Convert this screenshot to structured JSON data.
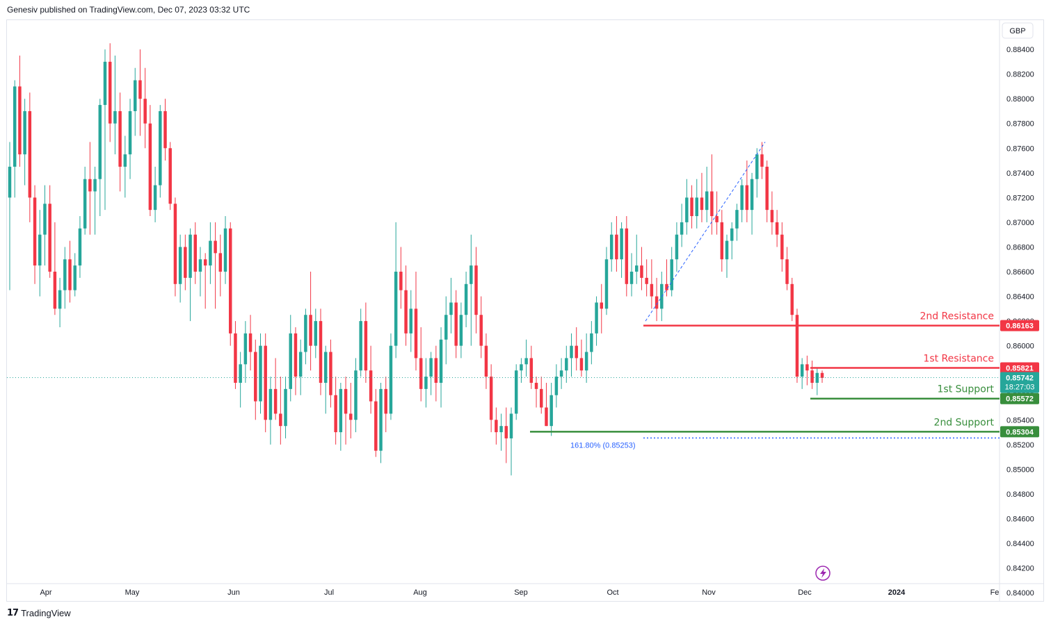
{
  "header": {
    "text": "Genesiv published on TradingView.com, Dec 07, 2023 03:32 UTC"
  },
  "footer": {
    "brand": "TradingView"
  },
  "colors": {
    "up": "#26a69a",
    "down": "#f23645",
    "resistance": "#f23645",
    "support": "#388e3c",
    "fib": "#2962ff"
  },
  "chart_data": {
    "type": "candlestick",
    "currency": "GBP",
    "y_ticks": [
      "0.88400",
      "0.88200",
      "0.88000",
      "0.87800",
      "0.87600",
      "0.87400",
      "0.87200",
      "0.87000",
      "0.86800",
      "0.86600",
      "0.86400",
      "0.86200",
      "0.86000",
      "0.85800",
      "0.85600",
      "0.85400",
      "0.85200",
      "0.85000",
      "0.84800",
      "0.84600",
      "0.84400",
      "0.84200",
      "0.84000"
    ],
    "ylim": [
      0.8395,
      0.8862
    ],
    "x_labels": [
      "Apr",
      "May",
      "Jun",
      "Jul",
      "Aug",
      "Sep",
      "Oct",
      "Nov",
      "Dec",
      "2024",
      "Fe"
    ],
    "last_price": {
      "value": "0.85742",
      "countdown": "18:27:03"
    },
    "levels": [
      {
        "label": "2nd Resistance",
        "value": "0.86163",
        "kind": "resistance"
      },
      {
        "label": "1st Resistance",
        "value": "0.85821",
        "kind": "resistance"
      },
      {
        "label": "1st Support",
        "value": "0.85572",
        "kind": "support"
      },
      {
        "label": "2nd Support",
        "value": "0.85304",
        "kind": "support"
      }
    ],
    "fib": {
      "label": "161.80% (0.85253)",
      "value": 0.85253
    },
    "candles": [
      [
        0.872,
        0.8765,
        0.8645,
        0.8745
      ],
      [
        0.8745,
        0.8815,
        0.872,
        0.881
      ],
      [
        0.881,
        0.8835,
        0.8745,
        0.8755
      ],
      [
        0.8755,
        0.88,
        0.873,
        0.879
      ],
      [
        0.879,
        0.8805,
        0.87,
        0.872
      ],
      [
        0.872,
        0.873,
        0.865,
        0.8665
      ],
      [
        0.8665,
        0.871,
        0.864,
        0.869
      ],
      [
        0.869,
        0.873,
        0.8665,
        0.8715
      ],
      [
        0.8715,
        0.873,
        0.8655,
        0.866
      ],
      [
        0.866,
        0.87,
        0.8625,
        0.863
      ],
      [
        0.863,
        0.8655,
        0.8615,
        0.8645
      ],
      [
        0.8645,
        0.868,
        0.863,
        0.867
      ],
      [
        0.867,
        0.8685,
        0.8635,
        0.8645
      ],
      [
        0.8645,
        0.8675,
        0.864,
        0.8665
      ],
      [
        0.8665,
        0.8705,
        0.8655,
        0.8695
      ],
      [
        0.8695,
        0.8745,
        0.869,
        0.8735
      ],
      [
        0.8735,
        0.8765,
        0.869,
        0.8725
      ],
      [
        0.8725,
        0.8745,
        0.869,
        0.8735
      ],
      [
        0.8735,
        0.88,
        0.8705,
        0.8795
      ],
      [
        0.8795,
        0.884,
        0.871,
        0.883
      ],
      [
        0.883,
        0.8845,
        0.8765,
        0.878
      ],
      [
        0.878,
        0.8835,
        0.8755,
        0.879
      ],
      [
        0.879,
        0.8805,
        0.8725,
        0.8745
      ],
      [
        0.8745,
        0.877,
        0.872,
        0.8755
      ],
      [
        0.8755,
        0.88,
        0.8735,
        0.879
      ],
      [
        0.879,
        0.8825,
        0.877,
        0.8815
      ],
      [
        0.8815,
        0.884,
        0.877,
        0.88
      ],
      [
        0.88,
        0.8825,
        0.876,
        0.878
      ],
      [
        0.878,
        0.8795,
        0.8705,
        0.871
      ],
      [
        0.871,
        0.8745,
        0.87,
        0.873
      ],
      [
        0.873,
        0.8795,
        0.872,
        0.879
      ],
      [
        0.879,
        0.88,
        0.875,
        0.876
      ],
      [
        0.876,
        0.8765,
        0.871,
        0.8715
      ],
      [
        0.8715,
        0.872,
        0.864,
        0.865
      ],
      [
        0.865,
        0.869,
        0.8635,
        0.868
      ],
      [
        0.868,
        0.869,
        0.8645,
        0.8655
      ],
      [
        0.8655,
        0.8695,
        0.862,
        0.869
      ],
      [
        0.869,
        0.87,
        0.865,
        0.866
      ],
      [
        0.866,
        0.868,
        0.864,
        0.867
      ],
      [
        0.867,
        0.8675,
        0.863,
        0.8665
      ],
      [
        0.8665,
        0.87,
        0.865,
        0.8685
      ],
      [
        0.8685,
        0.87,
        0.863,
        0.8675
      ],
      [
        0.8675,
        0.869,
        0.864,
        0.866
      ],
      [
        0.866,
        0.8705,
        0.865,
        0.8695
      ],
      [
        0.8695,
        0.87,
        0.86,
        0.861
      ],
      [
        0.861,
        0.862,
        0.8565,
        0.857
      ],
      [
        0.857,
        0.8595,
        0.855,
        0.8585
      ],
      [
        0.8585,
        0.862,
        0.857,
        0.861
      ],
      [
        0.861,
        0.8625,
        0.858,
        0.8595
      ],
      [
        0.8595,
        0.8605,
        0.854,
        0.8555
      ],
      [
        0.8555,
        0.861,
        0.8545,
        0.86
      ],
      [
        0.86,
        0.861,
        0.853,
        0.854
      ],
      [
        0.854,
        0.8575,
        0.852,
        0.8565
      ],
      [
        0.8565,
        0.859,
        0.854,
        0.8545
      ],
      [
        0.8545,
        0.8575,
        0.852,
        0.8535
      ],
      [
        0.8535,
        0.8575,
        0.8525,
        0.8565
      ],
      [
        0.8565,
        0.8625,
        0.8555,
        0.861
      ],
      [
        0.861,
        0.8615,
        0.856,
        0.8575
      ],
      [
        0.8575,
        0.8605,
        0.856,
        0.8595
      ],
      [
        0.8595,
        0.863,
        0.8585,
        0.8625
      ],
      [
        0.8625,
        0.866,
        0.858,
        0.86
      ],
      [
        0.86,
        0.863,
        0.859,
        0.862
      ],
      [
        0.862,
        0.863,
        0.856,
        0.857
      ],
      [
        0.857,
        0.86,
        0.8545,
        0.8595
      ],
      [
        0.8595,
        0.8605,
        0.855,
        0.856
      ],
      [
        0.856,
        0.8575,
        0.852,
        0.853
      ],
      [
        0.853,
        0.857,
        0.8515,
        0.8565
      ],
      [
        0.8565,
        0.8575,
        0.852,
        0.8545
      ],
      [
        0.8545,
        0.857,
        0.8525,
        0.854
      ],
      [
        0.854,
        0.859,
        0.853,
        0.858
      ],
      [
        0.858,
        0.863,
        0.8575,
        0.862
      ],
      [
        0.862,
        0.8635,
        0.857,
        0.858
      ],
      [
        0.858,
        0.86,
        0.8545,
        0.8555
      ],
      [
        0.8555,
        0.8565,
        0.851,
        0.8515
      ],
      [
        0.8515,
        0.857,
        0.8505,
        0.8565
      ],
      [
        0.8565,
        0.8575,
        0.853,
        0.8545
      ],
      [
        0.8545,
        0.861,
        0.854,
        0.86
      ],
      [
        0.86,
        0.87,
        0.859,
        0.866
      ],
      [
        0.866,
        0.868,
        0.863,
        0.8645
      ],
      [
        0.8645,
        0.8665,
        0.86,
        0.861
      ],
      [
        0.861,
        0.8645,
        0.8595,
        0.863
      ],
      [
        0.863,
        0.866,
        0.858,
        0.859
      ],
      [
        0.859,
        0.8615,
        0.8555,
        0.8565
      ],
      [
        0.8565,
        0.859,
        0.855,
        0.8575
      ],
      [
        0.8575,
        0.8595,
        0.856,
        0.859
      ],
      [
        0.859,
        0.86,
        0.8555,
        0.857
      ],
      [
        0.857,
        0.8615,
        0.855,
        0.8605
      ],
      [
        0.8605,
        0.864,
        0.8585,
        0.8625
      ],
      [
        0.8625,
        0.8655,
        0.861,
        0.8635
      ],
      [
        0.8635,
        0.8645,
        0.859,
        0.86
      ],
      [
        0.86,
        0.8635,
        0.859,
        0.8625
      ],
      [
        0.8625,
        0.866,
        0.8615,
        0.865
      ],
      [
        0.865,
        0.869,
        0.86,
        0.8665
      ],
      [
        0.8665,
        0.868,
        0.861,
        0.8625
      ],
      [
        0.8625,
        0.864,
        0.859,
        0.86
      ],
      [
        0.86,
        0.861,
        0.8565,
        0.8575
      ],
      [
        0.8575,
        0.8585,
        0.853,
        0.854
      ],
      [
        0.854,
        0.855,
        0.852,
        0.853
      ],
      [
        0.853,
        0.8545,
        0.8515,
        0.8535
      ],
      [
        0.8535,
        0.855,
        0.8505,
        0.8525
      ],
      [
        0.8525,
        0.855,
        0.8495,
        0.8545
      ],
      [
        0.8545,
        0.8585,
        0.854,
        0.858
      ],
      [
        0.858,
        0.859,
        0.857,
        0.8585
      ],
      [
        0.8585,
        0.8605,
        0.8575,
        0.859
      ],
      [
        0.859,
        0.86,
        0.8565,
        0.857
      ],
      [
        0.857,
        0.8575,
        0.855,
        0.8565
      ],
      [
        0.8565,
        0.8575,
        0.8545,
        0.855
      ],
      [
        0.855,
        0.857,
        0.8535,
        0.8535
      ],
      [
        0.8535,
        0.857,
        0.8527,
        0.856
      ],
      [
        0.856,
        0.8585,
        0.855,
        0.8575
      ],
      [
        0.8575,
        0.859,
        0.8565,
        0.858
      ],
      [
        0.858,
        0.86,
        0.857,
        0.859
      ],
      [
        0.859,
        0.861,
        0.8575,
        0.86
      ],
      [
        0.86,
        0.8615,
        0.858,
        0.859
      ],
      [
        0.859,
        0.8605,
        0.8575,
        0.858
      ],
      [
        0.858,
        0.861,
        0.857,
        0.8595
      ],
      [
        0.8595,
        0.862,
        0.8585,
        0.861
      ],
      [
        0.861,
        0.864,
        0.86,
        0.8635
      ],
      [
        0.8635,
        0.865,
        0.861,
        0.863
      ],
      [
        0.863,
        0.868,
        0.8625,
        0.867
      ],
      [
        0.867,
        0.87,
        0.866,
        0.869
      ],
      [
        0.869,
        0.8705,
        0.866,
        0.867
      ],
      [
        0.867,
        0.87,
        0.8655,
        0.8695
      ],
      [
        0.8695,
        0.8705,
        0.864,
        0.865
      ],
      [
        0.865,
        0.8675,
        0.864,
        0.866
      ],
      [
        0.866,
        0.869,
        0.865,
        0.8665
      ],
      [
        0.8665,
        0.868,
        0.8645,
        0.8655
      ],
      [
        0.8655,
        0.867,
        0.864,
        0.865
      ],
      [
        0.865,
        0.867,
        0.863,
        0.864
      ],
      [
        0.864,
        0.8655,
        0.862,
        0.863
      ],
      [
        0.863,
        0.866,
        0.862,
        0.865
      ],
      [
        0.865,
        0.867,
        0.864,
        0.8645
      ],
      [
        0.8645,
        0.868,
        0.864,
        0.867
      ],
      [
        0.867,
        0.87,
        0.866,
        0.869
      ],
      [
        0.869,
        0.8715,
        0.868,
        0.87
      ],
      [
        0.87,
        0.8735,
        0.869,
        0.872
      ],
      [
        0.872,
        0.873,
        0.8695,
        0.8705
      ],
      [
        0.8705,
        0.8735,
        0.8695,
        0.872
      ],
      [
        0.872,
        0.874,
        0.87,
        0.871
      ],
      [
        0.871,
        0.8745,
        0.87,
        0.8725
      ],
      [
        0.8725,
        0.8755,
        0.869,
        0.8705
      ],
      [
        0.8705,
        0.8725,
        0.869,
        0.87
      ],
      [
        0.87,
        0.871,
        0.866,
        0.867
      ],
      [
        0.867,
        0.869,
        0.8655,
        0.8685
      ],
      [
        0.8685,
        0.87,
        0.867,
        0.8695
      ],
      [
        0.8695,
        0.8715,
        0.8685,
        0.871
      ],
      [
        0.871,
        0.8735,
        0.87,
        0.873
      ],
      [
        0.873,
        0.875,
        0.87,
        0.871
      ],
      [
        0.871,
        0.874,
        0.869,
        0.8735
      ],
      [
        0.8735,
        0.876,
        0.872,
        0.8755
      ],
      [
        0.8755,
        0.8765,
        0.8735,
        0.8745
      ],
      [
        0.8745,
        0.875,
        0.87,
        0.871
      ],
      [
        0.871,
        0.8725,
        0.869,
        0.87
      ],
      [
        0.87,
        0.871,
        0.868,
        0.869
      ],
      [
        0.869,
        0.87,
        0.866,
        0.867
      ],
      [
        0.867,
        0.868,
        0.8645,
        0.865
      ],
      [
        0.865,
        0.8655,
        0.862,
        0.8625
      ],
      [
        0.8625,
        0.863,
        0.857,
        0.8575
      ],
      [
        0.8575,
        0.859,
        0.8565,
        0.8585
      ],
      [
        0.8585,
        0.8592,
        0.8568,
        0.858
      ],
      [
        0.858,
        0.8588,
        0.8565,
        0.857
      ],
      [
        0.857,
        0.8582,
        0.856,
        0.8578
      ],
      [
        0.8578,
        0.858,
        0.857,
        0.8574
      ]
    ]
  }
}
